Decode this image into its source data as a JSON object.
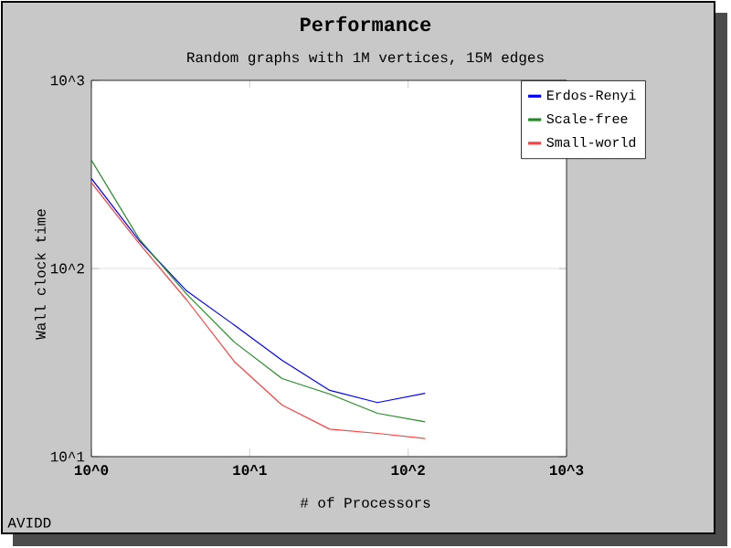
{
  "chart_data": {
    "type": "line",
    "title": "Performance",
    "subtitle": "Random graphs with 1M vertices, 15M edges",
    "xlabel": "# of Processors",
    "ylabel": "Wall clock time",
    "annotations": [
      "AVIDD"
    ],
    "x": [
      1,
      2,
      4,
      8,
      16,
      32,
      64,
      128
    ],
    "series": [
      {
        "name": "Erdos-Renyi",
        "color": "#0000ff",
        "values": [
          301,
          141,
          76,
          50,
          32.5,
          22.5,
          19.4,
          21.7
        ]
      },
      {
        "name": "Scale-free",
        "color": "#228b22",
        "values": [
          377,
          144,
          73,
          40.6,
          26,
          21.5,
          17,
          15.3
        ]
      },
      {
        "name": "Small-world",
        "color": "#ff4040",
        "values": [
          286,
          136,
          68,
          32,
          18.8,
          14,
          13.3,
          12.5
        ]
      }
    ],
    "log": "xy",
    "grid": "y",
    "legend": "top right",
    "xlim": [
      1,
      1000
    ],
    "ylim": [
      10,
      1000
    ],
    "xticks": [
      {
        "value": 1,
        "label": "10^0"
      },
      {
        "value": 10,
        "label": "10^1"
      },
      {
        "value": 100,
        "label": "10^2"
      },
      {
        "value": 1000,
        "label": "10^3"
      }
    ],
    "yticks": [
      {
        "value": 10,
        "label": "10^1"
      },
      {
        "value": 100,
        "label": "10^2"
      },
      {
        "value": 1000,
        "label": "10^3"
      }
    ]
  }
}
